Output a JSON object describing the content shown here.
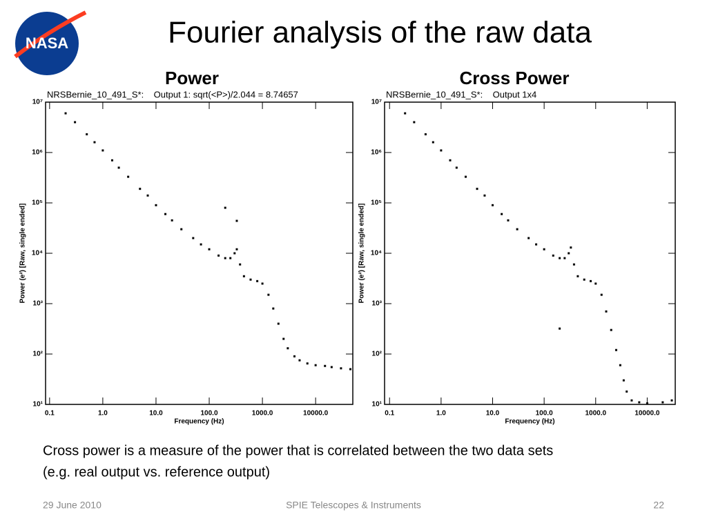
{
  "slide": {
    "title": "Fourier analysis of the raw data",
    "logo": "NASA",
    "caption": [
      "Cross power is a measure of the power that is correlated between the two data sets",
      "(e.g. real output vs. reference output)"
    ],
    "footer": {
      "date": "29 June 2010",
      "event": "SPIE Telescopes & Instruments",
      "page": "22"
    }
  },
  "chart_data": [
    {
      "type": "scatter",
      "heading": "Power",
      "title": "NRSBernie_10_491_S*:    Output 1: sqrt(<P>)/2.044 = 8.74657",
      "x_label": "Frequency (Hz)",
      "y_label": "Power (e²) [Raw, single ended]",
      "log_x": true,
      "log_y": true,
      "color": "#000000",
      "xlim": [
        0.084,
        50000
      ],
      "ylim": [
        10,
        10000000
      ],
      "xticks": [
        0.1,
        {
          "value": 1,
          "label": "1.0"
        },
        {
          "value": 10,
          "label": "10.0"
        },
        {
          "value": 100,
          "label": "100.0"
        },
        {
          "value": 1000,
          "label": "1000.0"
        },
        {
          "value": 10000,
          "label": "10000.0"
        }
      ],
      "yticks": [
        {
          "value": 10,
          "label": "10¹"
        },
        {
          "value": 100,
          "label": "10²"
        },
        {
          "value": 1000,
          "label": "10³"
        },
        {
          "value": 10000,
          "label": "10⁴"
        },
        {
          "value": 100000,
          "label": "10⁵"
        },
        {
          "value": 1000000,
          "label": "10⁶"
        },
        {
          "value": 10000000,
          "label": "10⁷"
        }
      ],
      "x": [
        0.2,
        0.3,
        0.5,
        0.7,
        1,
        1.5,
        2,
        3,
        5,
        7,
        10,
        15,
        20,
        30,
        50,
        70,
        100,
        150,
        200,
        200,
        250,
        300,
        330,
        330,
        380,
        450,
        600,
        800,
        1000,
        1300,
        1600,
        2000,
        2500,
        3000,
        4000,
        5000,
        7000,
        10000,
        15000,
        20000,
        30000,
        45000
      ],
      "y": [
        6000000,
        4000000,
        2300000,
        1600000,
        1100000,
        700000,
        500000,
        330000,
        190000,
        140000,
        90000,
        60000,
        45000,
        30000,
        20000,
        15000,
        12000,
        9000,
        8000,
        80000,
        8000,
        10000,
        12000,
        44000,
        6000,
        3500,
        3000,
        2800,
        2500,
        1500,
        800,
        400,
        200,
        130,
        90,
        75,
        65,
        60,
        58,
        55,
        52,
        50
      ]
    },
    {
      "type": "scatter",
      "heading": "Cross Power",
      "title": "NRSBernie_10_491_S*:    Output 1x4",
      "x_label": "Frequency (Hz)",
      "y_label": "Power (e²) [Raw, single ended]",
      "log_x": true,
      "log_y": true,
      "color": "#000000",
      "xlim": [
        0.08,
        35000
      ],
      "ylim": [
        10,
        10000000
      ],
      "xticks": [
        0.1,
        {
          "value": 1,
          "label": "1.0"
        },
        {
          "value": 10,
          "label": "10.0"
        },
        {
          "value": 100,
          "label": "100.0"
        },
        {
          "value": 1000,
          "label": "1000.0"
        },
        {
          "value": 10000,
          "label": "10000.0"
        }
      ],
      "yticks": [
        {
          "value": 10,
          "label": "10¹"
        },
        {
          "value": 100,
          "label": "10²"
        },
        {
          "value": 1000,
          "label": "10³"
        },
        {
          "value": 10000,
          "label": "10⁴"
        },
        {
          "value": 100000,
          "label": "10⁵"
        },
        {
          "value": 1000000,
          "label": "10⁶"
        },
        {
          "value": 10000000,
          "label": "10⁷"
        }
      ],
      "x": [
        0.2,
        0.3,
        0.5,
        0.7,
        1,
        1.5,
        2,
        3,
        5,
        7,
        10,
        15,
        20,
        30,
        50,
        70,
        100,
        150,
        200,
        200,
        250,
        300,
        330,
        380,
        450,
        600,
        800,
        1000,
        1300,
        1600,
        2000,
        2500,
        3000,
        3500,
        4000,
        5000,
        7000,
        10000,
        20000,
        30000
      ],
      "y": [
        6000000,
        4000000,
        2300000,
        1600000,
        1100000,
        700000,
        500000,
        330000,
        190000,
        140000,
        90000,
        60000,
        45000,
        30000,
        20000,
        15000,
        12000,
        9000,
        8000,
        320,
        8000,
        10000,
        13000,
        6000,
        3500,
        3000,
        2800,
        2500,
        1500,
        700,
        300,
        120,
        60,
        30,
        18,
        12,
        11,
        10.5,
        11,
        12
      ]
    }
  ]
}
